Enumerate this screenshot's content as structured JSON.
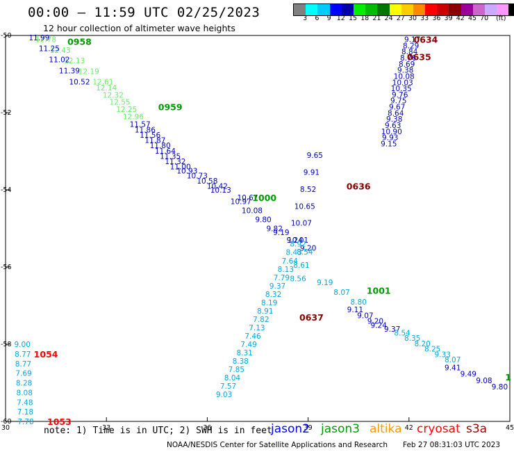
{
  "header": {
    "title": "00:00 – 11:59 UTC 02/25/2023",
    "subtitle": "12 hour collection of altimeter wave heights"
  },
  "color_scale": {
    "unit_label": "(ft)",
    "colors": [
      "#808080",
      "#00ffff",
      "#00ccff",
      "#0000ff",
      "#0000aa",
      "#00ee00",
      "#00bb00",
      "#007700",
      "#ffff00",
      "#ffcc00",
      "#ff8800",
      "#ff0000",
      "#cc0000",
      "#880000",
      "#990099",
      "#cc66cc",
      "#ccaaff",
      "#ff99ff",
      "#000000"
    ],
    "labels": [
      "3",
      "6",
      "9",
      "12",
      "15",
      "18",
      "21",
      "24",
      "27",
      "30",
      "33",
      "36",
      "39",
      "42",
      "45",
      "70"
    ]
  },
  "footer": {
    "note": "note: 1) Time is in UTC; 2) SWH is in feet",
    "satellites": [
      {
        "name": "jason2",
        "color": "#0000ff"
      },
      {
        "name": "jason3",
        "color": "#009900"
      },
      {
        "name": "altika",
        "color": "#ff9900"
      },
      {
        "name": "cryosat",
        "color": "#ff0000"
      },
      {
        "name": "s3a",
        "color": "#990000"
      }
    ],
    "credit": "NOAA/NESDIS Center for Satellite Applications and Research",
    "timestamp": "Feb 27 08:31:03 UTC 2023"
  },
  "chart_data": {
    "type": "scatter",
    "xlim": [
      30,
      45
    ],
    "ylim": [
      -60,
      -50
    ],
    "x_ticks": [
      "30",
      "33",
      "36",
      "39",
      "42",
      "45"
    ],
    "y_ticks": [
      "-50",
      "-52",
      "-54",
      "-56",
      "-58",
      "-60"
    ],
    "grid": false,
    "colors": {
      "lgreen": "#66ee66",
      "navy": "#0000bb",
      "cyan": "#00aadd",
      "green": "#009900",
      "maroon": "#880000",
      "red": "#ff0000"
    },
    "tracks": [
      {
        "start": [
          31.2,
          -50.1
        ],
        "end": [
          32.9,
          -51.2
        ],
        "values": [
          "12.78",
          "12.43",
          "12.13",
          "12.19",
          "12.61"
        ],
        "color": "lgreen"
      },
      {
        "start": [
          33.0,
          -51.35
        ],
        "end": [
          33.8,
          -52.1
        ],
        "values": [
          "12.14",
          "12.32",
          "12.55",
          "12.25",
          "12.96"
        ],
        "color": "lgreen"
      },
      {
        "start": [
          31.0,
          -50.05
        ],
        "end": [
          32.2,
          -51.2
        ],
        "values": [
          "11.99",
          "11.25",
          "11.02",
          "11.39",
          "10.52"
        ],
        "color": "navy"
      },
      {
        "start": [
          34.0,
          -52.3
        ],
        "end": [
          35.2,
          -53.4
        ],
        "values": [
          "11.57",
          "11.86",
          "11.56",
          "11.87",
          "11.80",
          "11.64",
          "11.35",
          "11.32",
          "11.00"
        ],
        "color": "navy"
      },
      {
        "start": [
          35.4,
          -53.5
        ],
        "end": [
          36.3,
          -53.9
        ],
        "values": [
          "10.93",
          "10.73",
          "10.58",
          "10.42"
        ],
        "color": "navy"
      },
      {
        "start": [
          36.4,
          -54.0
        ],
        "end": [
          37.2,
          -54.2
        ],
        "values": [
          "10.13",
          "10.67"
        ],
        "color": "navy"
      },
      {
        "start": [
          37.0,
          -54.3
        ],
        "end": [
          38.0,
          -55.0
        ],
        "values": [
          "10.97",
          "10.08",
          "9.80",
          "9.82"
        ],
        "color": "navy"
      },
      {
        "start": [
          38.2,
          -55.1
        ],
        "end": [
          39.0,
          -55.5
        ],
        "values": [
          "9.19",
          "9.24",
          "9.20"
        ],
        "color": "navy"
      },
      {
        "start": [
          39.5,
          -56.4
        ],
        "end": [
          40.5,
          -56.9
        ],
        "values": [
          "9.19",
          "8.07",
          "8.80"
        ],
        "color": "cyan"
      },
      {
        "start": [
          40.4,
          -57.1
        ],
        "end": [
          41.0,
          -57.4
        ],
        "values": [
          "9.11",
          "9.07",
          "9.20"
        ],
        "color": "navy"
      },
      {
        "start": [
          41.1,
          -57.5
        ],
        "end": [
          41.5,
          -57.6
        ],
        "values": [
          "9.24",
          "9.37"
        ],
        "color": "navy"
      },
      {
        "start": [
          41.8,
          -57.7
        ],
        "end": [
          43.3,
          -58.4
        ],
        "values": [
          "8.54",
          "8.35",
          "8.20",
          "8.25",
          "9.33",
          "8.07"
        ],
        "color": "cyan"
      },
      {
        "start": [
          43.3,
          -58.6
        ],
        "end": [
          44.7,
          -59.1
        ],
        "values": [
          "9.41",
          "9.49",
          "9.08",
          "9.80"
        ],
        "color": "navy"
      },
      {
        "start": [
          42.1,
          -50.1
        ],
        "end": [
          41.4,
          -52.8
        ],
        "values": [
          "9.17",
          "8.29",
          "8.84",
          "8.76",
          "8.69",
          "9.38",
          "10.08",
          "10.03",
          "10.35",
          "9.76",
          "9.75",
          "9.67",
          "8.64",
          "9.38",
          "9.63",
          "10.90",
          "9.93",
          "9.15"
        ],
        "color": "navy"
      },
      {
        "start": [
          39.2,
          -53.1
        ],
        "end": [
          38.7,
          -55.3
        ],
        "values": [
          "9.65",
          "9.91",
          "8.52",
          "10.65",
          "10.07",
          "10.01"
        ],
        "color": "navy"
      },
      {
        "start": [
          38.9,
          -55.6
        ],
        "end": [
          38.7,
          -56.3
        ],
        "values": [
          "8.54",
          "8.61",
          "8.56"
        ],
        "color": "cyan"
      },
      {
        "start": [
          38.7,
          -55.4
        ],
        "end": [
          36.5,
          -59.3
        ],
        "values": [
          "8.92",
          "8.43",
          "7.64",
          "8.13",
          "7.79",
          "9.37",
          "8.32",
          "8.19",
          "8.91",
          "7.82",
          "7.13",
          "7.46",
          "7.49",
          "8.31",
          "8.38",
          "7.85",
          "8.04",
          "7.57",
          "9.03"
        ],
        "color": "cyan"
      },
      {
        "start": [
          30.5,
          -58.0
        ],
        "end": [
          30.6,
          -60.0
        ],
        "values": [
          "9.00",
          "8.77",
          "8.77",
          "7.69",
          "8.28",
          "8.08",
          "7.48",
          "7.18",
          "7.78"
        ],
        "color": "cyan"
      }
    ],
    "time_labels": [
      {
        "text": "0958",
        "x": 32.2,
        "y": -50.15,
        "color": "green"
      },
      {
        "text": "0959",
        "x": 34.9,
        "y": -51.85,
        "color": "green"
      },
      {
        "text": "1000",
        "x": 37.7,
        "y": -54.2,
        "color": "green"
      },
      {
        "text": "1001",
        "x": 41.1,
        "y": -56.6,
        "color": "green"
      },
      {
        "text": "1",
        "x": 44.95,
        "y": -58.85,
        "color": "green"
      },
      {
        "text": "0634",
        "x": 42.5,
        "y": -50.1,
        "color": "maroon"
      },
      {
        "text": "0635",
        "x": 42.3,
        "y": -50.55,
        "color": "maroon"
      },
      {
        "text": "0636",
        "x": 40.5,
        "y": -53.9,
        "color": "maroon"
      },
      {
        "text": "0637",
        "x": 39.1,
        "y": -57.3,
        "color": "maroon"
      },
      {
        "text": "1054",
        "x": 31.2,
        "y": -58.25,
        "color": "red"
      },
      {
        "text": "1053",
        "x": 31.6,
        "y": -60.0,
        "color": "red"
      }
    ]
  }
}
